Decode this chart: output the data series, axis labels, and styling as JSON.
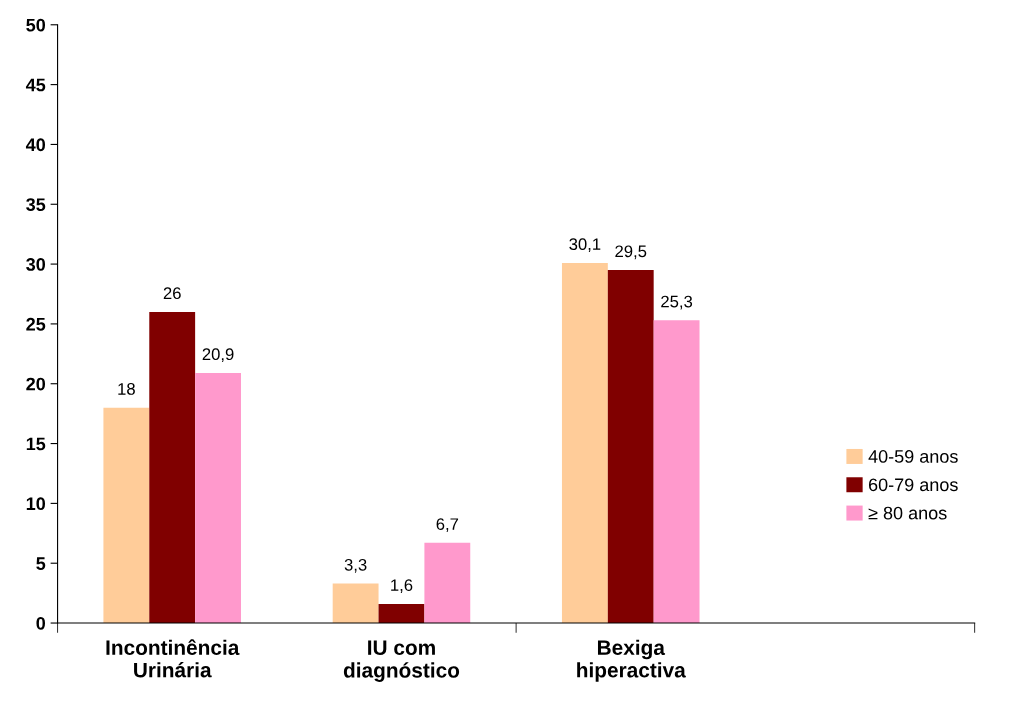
{
  "chart_data": {
    "type": "bar",
    "categories": [
      "Incontinência\nUrinária",
      "IU com\ndiagnóstico",
      "Bexiga\nhiperactiva",
      null
    ],
    "series": [
      {
        "name": "40-59 anos",
        "color": "#ffcc99",
        "values": [
          18,
          3.3,
          30.1,
          null
        ],
        "value_labels": [
          "18",
          "3,3",
          "30,1",
          null
        ]
      },
      {
        "name": "60-79 anos",
        "color": "#800000",
        "values": [
          26,
          1.6,
          29.5,
          null
        ],
        "value_labels": [
          "26",
          "1,6",
          "29,5",
          null
        ]
      },
      {
        "name": "≥ 80 anos",
        "color": "#ff99cc",
        "values": [
          20.9,
          6.7,
          25.3,
          null
        ],
        "value_labels": [
          "20,9",
          "6,7",
          "25,3",
          null
        ]
      }
    ],
    "ylim": [
      0,
      50
    ],
    "yticks": [
      0,
      5,
      10,
      15,
      20,
      25,
      30,
      35,
      40,
      45,
      50
    ],
    "grid": false,
    "legend": "right"
  }
}
